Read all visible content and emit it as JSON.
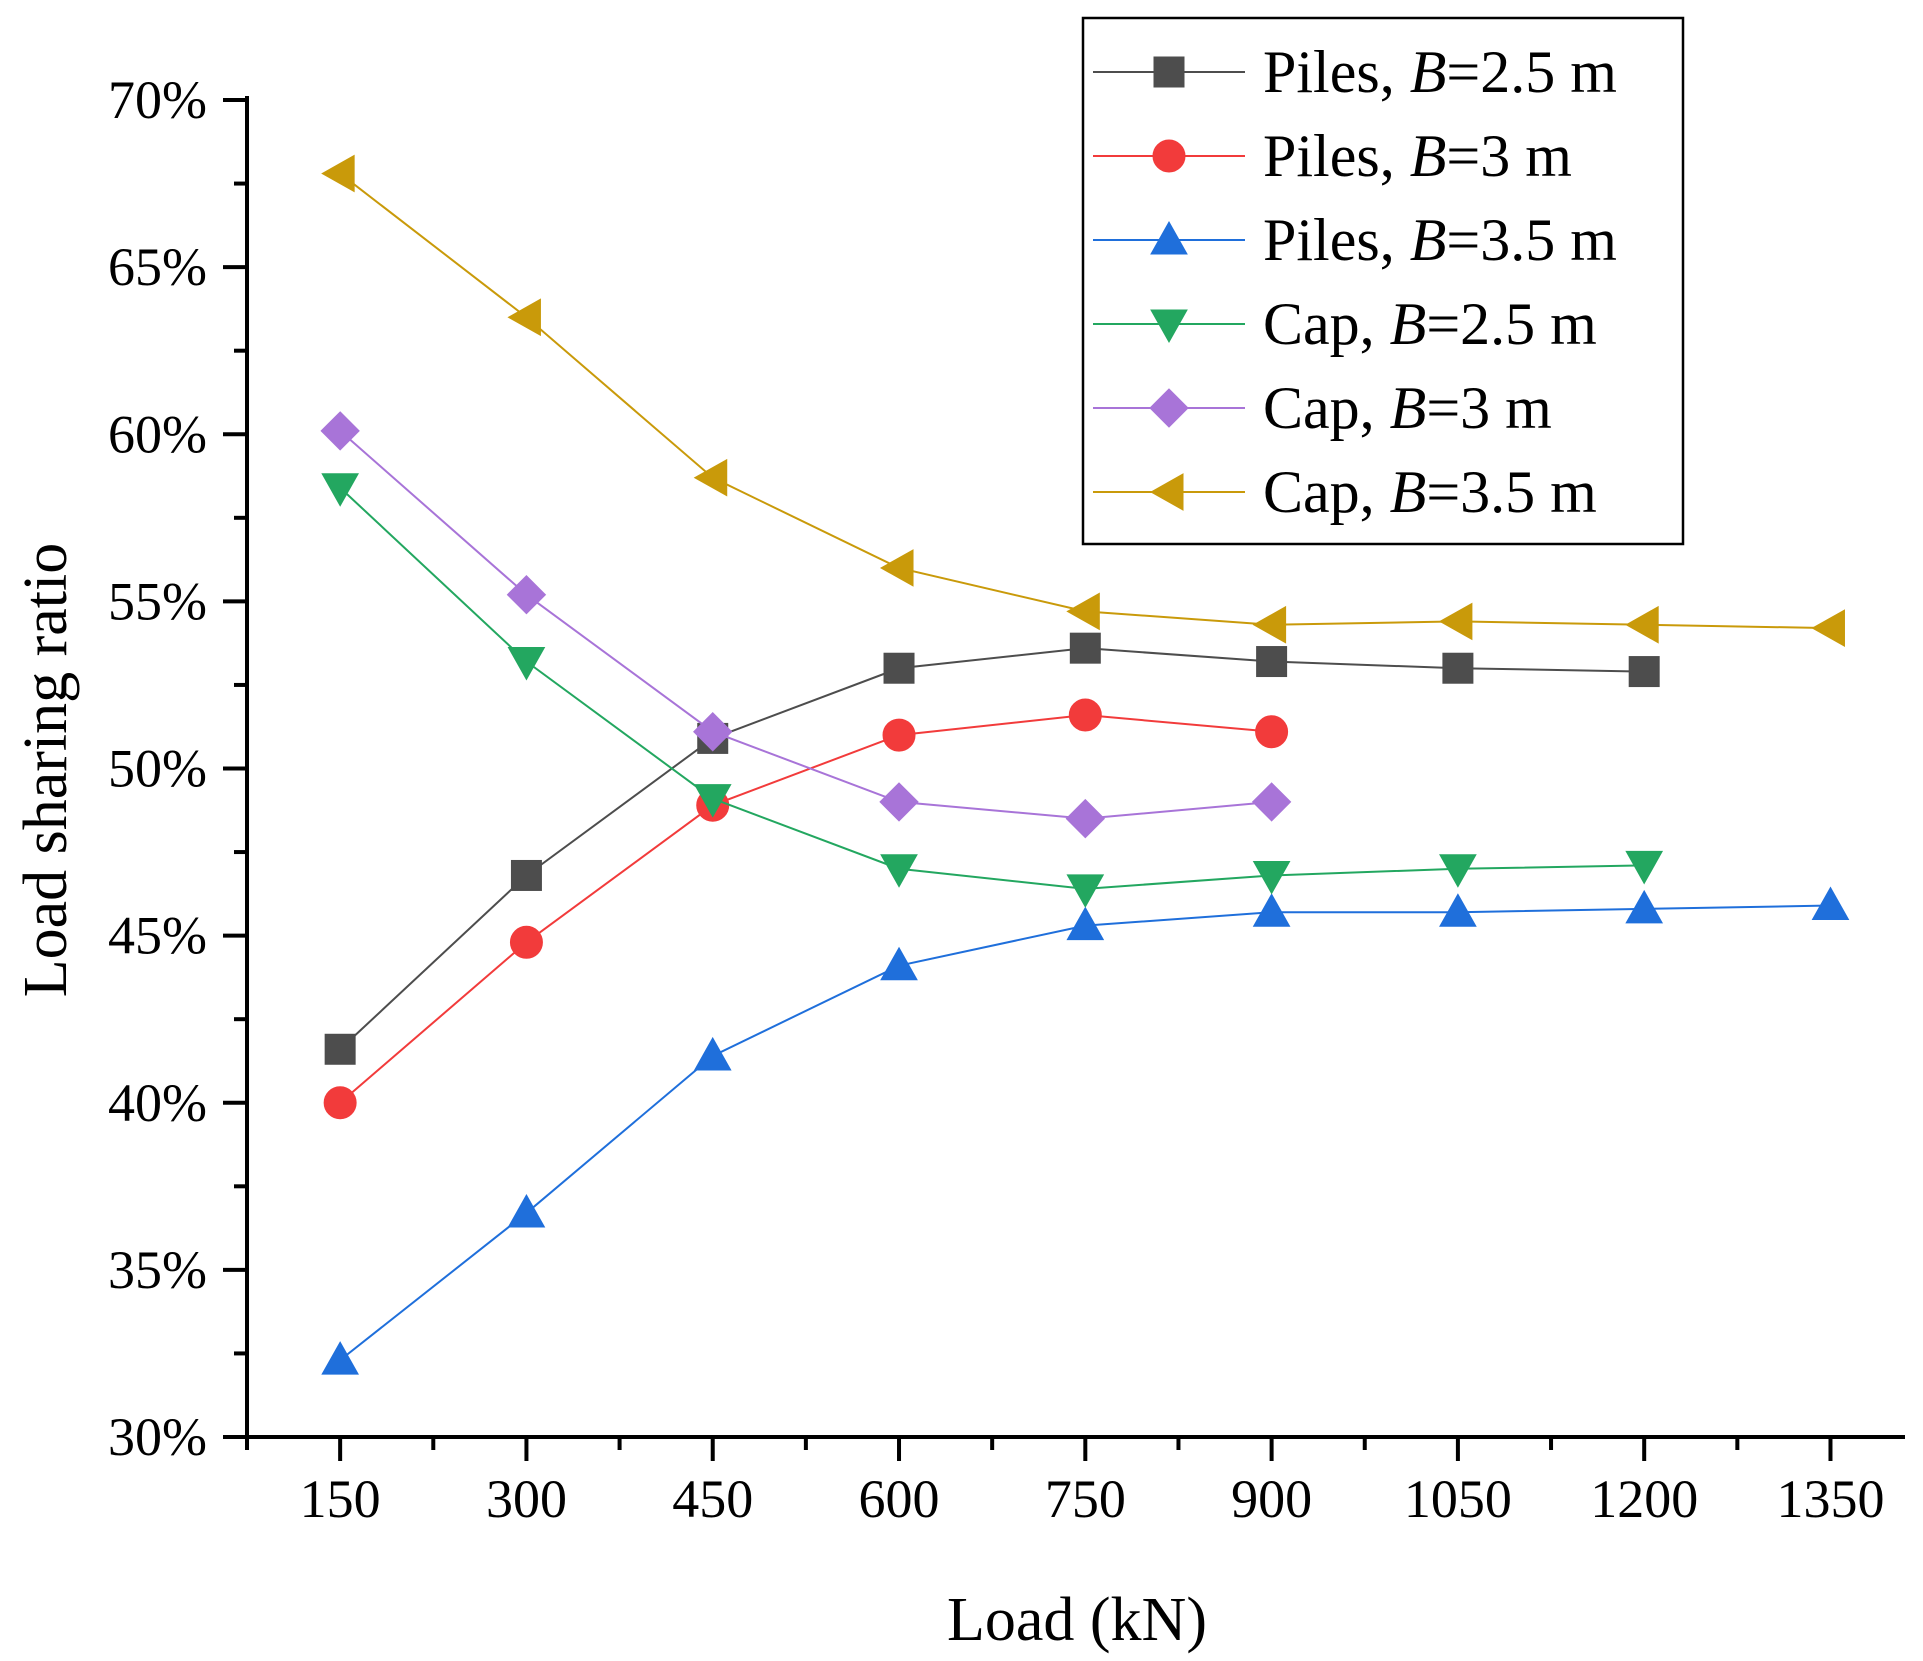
{
  "chart_data": {
    "type": "line",
    "xlabel": "Load (kN)",
    "ylabel": "Load sharing ratio",
    "xlim": [
      75,
      1410
    ],
    "ylim": [
      30,
      70
    ],
    "x_ticks": [
      150,
      300,
      450,
      600,
      750,
      900,
      1050,
      1200,
      1350
    ],
    "x_tick_labels": [
      "150",
      "300",
      "450",
      "600",
      "750",
      "900",
      "1050",
      "1200",
      "1350"
    ],
    "y_ticks": [
      30,
      35,
      40,
      45,
      50,
      55,
      60,
      65,
      70
    ],
    "y_tick_labels": [
      "30%",
      "35%",
      "40%",
      "45%",
      "50%",
      "55%",
      "60%",
      "65%",
      "70%"
    ],
    "grid": false,
    "legend_position": "top-right",
    "series": [
      {
        "name_prefix": "Piles, ",
        "name_var": "B",
        "name_suffix": "=2.5 m",
        "color": "#4d4d4d",
        "marker": "square",
        "x": [
          150,
          300,
          450,
          600,
          750,
          900,
          1050,
          1200
        ],
        "y": [
          41.6,
          46.8,
          50.9,
          53.0,
          53.6,
          53.2,
          53.0,
          52.9
        ]
      },
      {
        "name_prefix": "Piles, ",
        "name_var": "B",
        "name_suffix": "=3 m",
        "color": "#f23b3b",
        "marker": "circle",
        "x": [
          150,
          300,
          450,
          600,
          750,
          900
        ],
        "y": [
          40.0,
          44.8,
          48.9,
          51.0,
          51.6,
          51.1
        ]
      },
      {
        "name_prefix": "Piles, ",
        "name_var": "B",
        "name_suffix": "=3.5 m",
        "color": "#1f6fdb",
        "marker": "triangle-up",
        "x": [
          150,
          300,
          450,
          600,
          750,
          900,
          1050,
          1200,
          1350
        ],
        "y": [
          32.3,
          36.7,
          41.4,
          44.1,
          45.3,
          45.7,
          45.7,
          45.8,
          45.9
        ]
      },
      {
        "name_prefix": "Cap, ",
        "name_var": "B",
        "name_suffix": "=2.5 m",
        "color": "#23a760",
        "marker": "triangle-down",
        "x": [
          150,
          300,
          450,
          600,
          750,
          900,
          1050,
          1200
        ],
        "y": [
          58.4,
          53.2,
          49.1,
          47.0,
          46.4,
          46.8,
          47.0,
          47.1
        ]
      },
      {
        "name_prefix": "Cap, ",
        "name_var": "B",
        "name_suffix": "=3 m",
        "color": "#a874d8",
        "marker": "diamond",
        "x": [
          150,
          300,
          450,
          600,
          750,
          900
        ],
        "y": [
          60.1,
          55.2,
          51.1,
          49.0,
          48.5,
          49.0
        ]
      },
      {
        "name_prefix": "Cap, ",
        "name_var": "B",
        "name_suffix": "=3.5 m",
        "color": "#c99a0a",
        "marker": "triangle-left",
        "x": [
          150,
          300,
          450,
          600,
          750,
          900,
          1050,
          1200,
          1350
        ],
        "y": [
          67.8,
          63.5,
          58.7,
          56.0,
          54.7,
          54.3,
          54.4,
          54.3,
          54.2
        ]
      }
    ]
  }
}
